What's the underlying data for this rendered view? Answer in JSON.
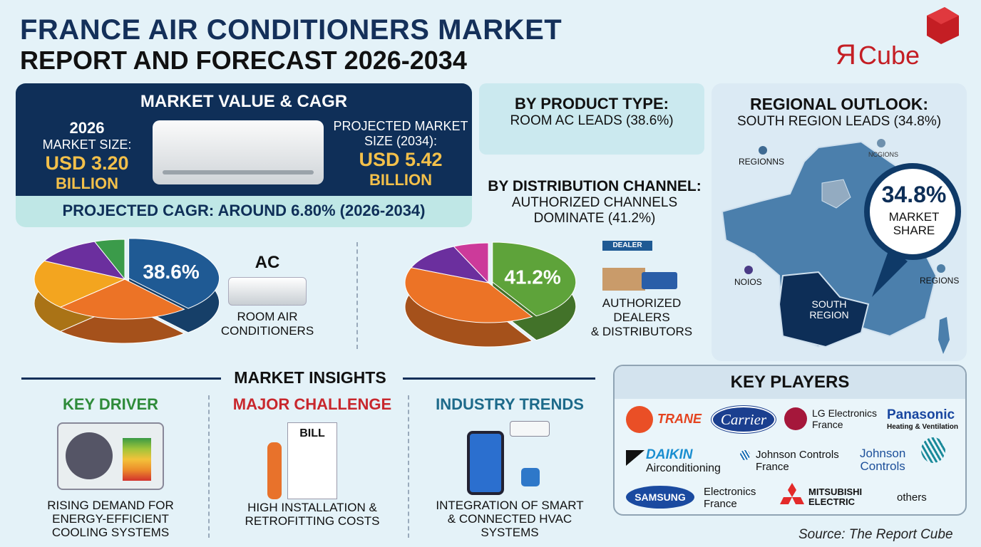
{
  "title": {
    "line1": "FRANCE AIR CONDITIONERS MARKET",
    "line2": "REPORT AND FORECAST 2026-2034"
  },
  "logo": {
    "text": "ЯCube"
  },
  "market": {
    "heading": "MARKET VALUE & CAGR",
    "year_label": "2026",
    "size_label": "MARKET SIZE:",
    "value_2026": "USD 3.20",
    "unit_2026": "BILLION",
    "proj_label1": "PROJECTED MARKET",
    "proj_label2": "SIZE (2034):",
    "value_2034": "USD 5.42",
    "unit_2034": "BILLION",
    "cagr": "PROJECTED CAGR: AROUND 6.80% (2026-2034)"
  },
  "product": {
    "heading": "BY PRODUCT TYPE:",
    "sub": "ROOM AC LEADS (38.6%)",
    "icon_label": "AC",
    "caption1": "ROOM AIR",
    "caption2": "CONDITIONERS"
  },
  "distribution": {
    "heading": "BY DISTRIBUTION CHANNEL:",
    "sub1": "AUTHORIZED CHANNELS",
    "sub2": "DOMINATE (41.2%)",
    "sign": "DEALER",
    "caption1": "AUTHORIZED",
    "caption2": "DEALERS",
    "caption3": "& DISTRIBUTORS"
  },
  "regional": {
    "heading": "REGIONAL OUTLOOK:",
    "sub": "SOUTH REGION LEADS (34.8%)",
    "share": "34.8%",
    "share_label1": "MARKET",
    "share_label2": "SHARE",
    "labels": [
      "REGIONNS",
      "NCGIONS",
      "NOIOS",
      "REGIONS"
    ],
    "south1": "SOUTH",
    "south2": "REGION"
  },
  "chart_data": [
    {
      "type": "pie",
      "title": "By Product Type",
      "slices": [
        {
          "name": "Room Air Conditioners",
          "value": 38.6,
          "color": "#1f5a94",
          "label": "38.6%"
        },
        {
          "name": "orange",
          "value": 24,
          "color": "#ec7326"
        },
        {
          "name": "yellow",
          "value": 20,
          "color": "#f3a51f"
        },
        {
          "name": "purple",
          "value": 12,
          "color": "#6b2f9e"
        },
        {
          "name": "green",
          "value": 5.4,
          "color": "#3b9b4a"
        }
      ]
    },
    {
      "type": "pie",
      "title": "By Distribution Channel",
      "slices": [
        {
          "name": "Authorized Dealers & Distributors",
          "value": 41.2,
          "color": "#5ea33a",
          "label": "41.2%"
        },
        {
          "name": "orange",
          "value": 40,
          "color": "#ec7326"
        },
        {
          "name": "purple",
          "value": 12,
          "color": "#6b2f9e"
        },
        {
          "name": "magenta",
          "value": 6.8,
          "color": "#cc3a9a"
        }
      ]
    }
  ],
  "insights": {
    "heading": "MARKET INSIGHTS",
    "cols": [
      {
        "title": "KEY DRIVER",
        "color": "#2e8b3a",
        "lines": [
          "RISING DEMAND FOR",
          "ENERGY-EFFICIENT",
          "COOLING SYSTEMS"
        ]
      },
      {
        "title": "MAJOR CHALLENGE",
        "color": "#c8272d",
        "lines": [
          "HIGH INSTALLATION &",
          "RETROFITTING COSTS",
          ""
        ],
        "bill": "BILL"
      },
      {
        "title": "INDUSTRY TRENDS",
        "color": "#1d6a8a",
        "lines": [
          "INTEGRATION OF SMART",
          "& CONNECTED HVAC",
          "SYSTEMS"
        ]
      }
    ]
  },
  "players": {
    "heading": "KEY PLAYERS",
    "trane": "TRANE",
    "carrier": "Carrier",
    "lg1": "LG Electronics",
    "lg2": "France",
    "pana1": "Panasonic",
    "pana2": "Heating & Ventilation",
    "daikin1": "DAIKIN",
    "daikin2": "Airconditioning",
    "jcf1": "Johnson Controls",
    "jcf2": "France",
    "jc1": "Johnson",
    "jc2": "Controls",
    "samsung": "SAMSUNG",
    "sef1": "Electronics",
    "sef2": "France",
    "mit1": "MITSUBISHI",
    "mit2": "ELECTRIC",
    "others": "others"
  },
  "source": "Source: The Report Cube"
}
